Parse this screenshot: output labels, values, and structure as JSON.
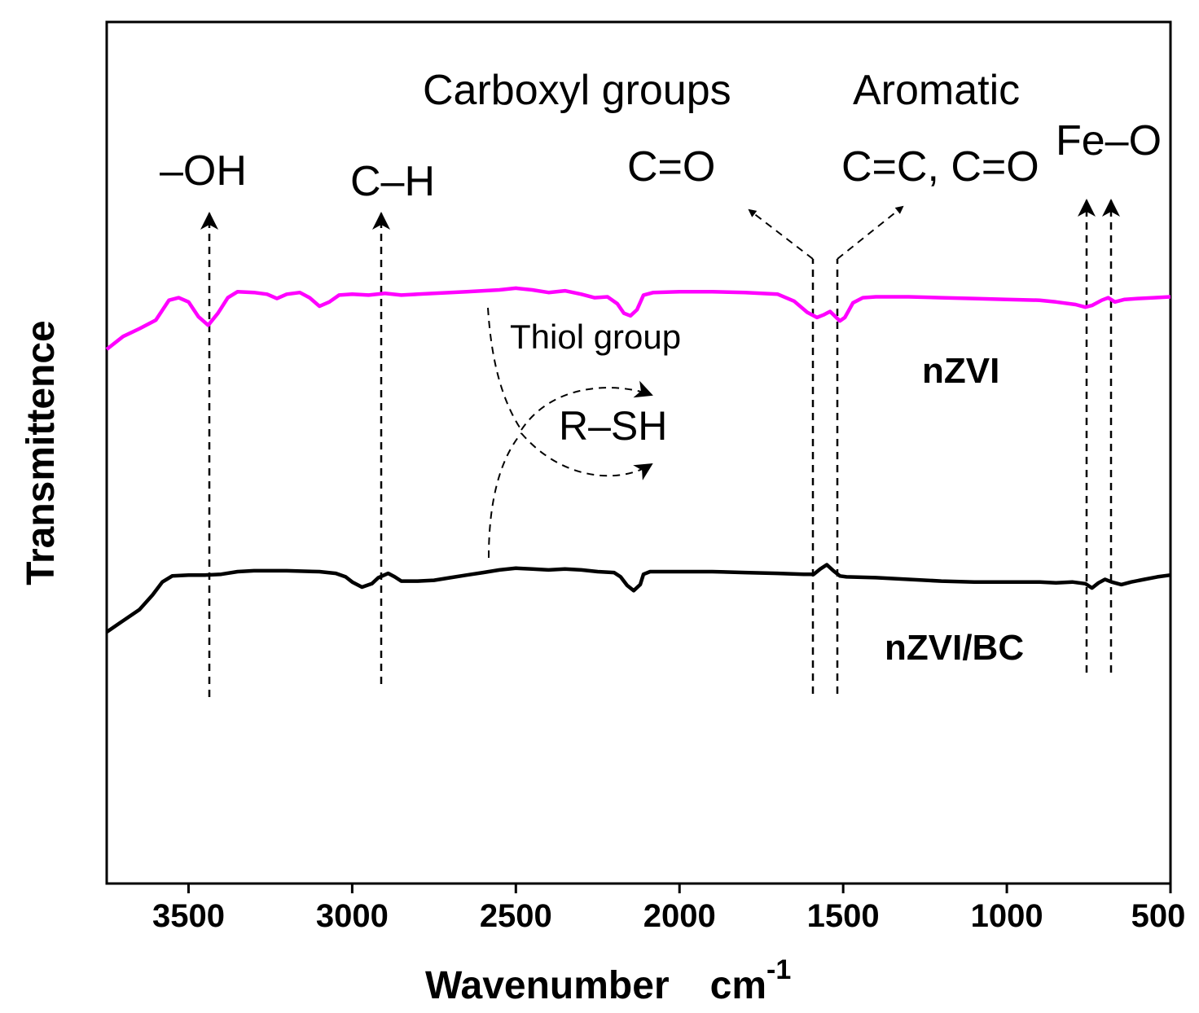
{
  "chart_data": {
    "type": "line",
    "title": "",
    "xlabel": "Wavenumber",
    "xlabel_unit": "cm",
    "xlabel_unit_exponent": "-1",
    "ylabel": "Transmittence",
    "xlim": [
      3750,
      500
    ],
    "x_reversed": true,
    "ylim": [
      0,
      100
    ],
    "y_ticks_shown": false,
    "x_ticks": [
      3500,
      3000,
      2500,
      2000,
      1500,
      1000,
      500
    ],
    "x_tick_labels": [
      "3500",
      "3000",
      "2500",
      "2000",
      "1500",
      "1000",
      "500"
    ],
    "series": [
      {
        "name": "nZVI",
        "color": "#ff00ff",
        "label_position": "right",
        "points": [
          [
            3750,
            62.0
          ],
          [
            3700,
            63.5
          ],
          [
            3650,
            64.4
          ],
          [
            3600,
            65.4
          ],
          [
            3560,
            67.7
          ],
          [
            3530,
            68.0
          ],
          [
            3500,
            67.5
          ],
          [
            3470,
            65.8
          ],
          [
            3440,
            64.8
          ],
          [
            3410,
            66.2
          ],
          [
            3380,
            68.0
          ],
          [
            3350,
            68.7
          ],
          [
            3300,
            68.6
          ],
          [
            3260,
            68.4
          ],
          [
            3230,
            67.9
          ],
          [
            3200,
            68.4
          ],
          [
            3160,
            68.6
          ],
          [
            3130,
            68.0
          ],
          [
            3100,
            67.0
          ],
          [
            3070,
            67.5
          ],
          [
            3040,
            68.3
          ],
          [
            3000,
            68.4
          ],
          [
            2950,
            68.3
          ],
          [
            2900,
            68.5
          ],
          [
            2850,
            68.3
          ],
          [
            2800,
            68.4
          ],
          [
            2750,
            68.5
          ],
          [
            2700,
            68.6
          ],
          [
            2650,
            68.7
          ],
          [
            2600,
            68.8
          ],
          [
            2550,
            68.9
          ],
          [
            2500,
            69.1
          ],
          [
            2450,
            68.9
          ],
          [
            2400,
            68.6
          ],
          [
            2350,
            68.8
          ],
          [
            2300,
            68.4
          ],
          [
            2260,
            68.0
          ],
          [
            2220,
            68.1
          ],
          [
            2190,
            67.3
          ],
          [
            2170,
            66.2
          ],
          [
            2150,
            65.9
          ],
          [
            2130,
            66.6
          ],
          [
            2110,
            68.3
          ],
          [
            2080,
            68.6
          ],
          [
            2000,
            68.7
          ],
          [
            1900,
            68.7
          ],
          [
            1800,
            68.6
          ],
          [
            1700,
            68.4
          ],
          [
            1650,
            67.6
          ],
          [
            1610,
            66.3
          ],
          [
            1580,
            65.7
          ],
          [
            1560,
            66.0
          ],
          [
            1540,
            66.4
          ],
          [
            1510,
            65.3
          ],
          [
            1495,
            65.7
          ],
          [
            1470,
            67.4
          ],
          [
            1440,
            68.0
          ],
          [
            1400,
            68.1
          ],
          [
            1300,
            68.1
          ],
          [
            1200,
            68.0
          ],
          [
            1100,
            67.9
          ],
          [
            1000,
            67.8
          ],
          [
            900,
            67.7
          ],
          [
            850,
            67.5
          ],
          [
            790,
            67.2
          ],
          [
            760,
            66.9
          ],
          [
            740,
            67.1
          ],
          [
            710,
            67.7
          ],
          [
            690,
            68.0
          ],
          [
            670,
            67.5
          ],
          [
            640,
            67.8
          ],
          [
            600,
            67.9
          ],
          [
            550,
            68.0
          ],
          [
            500,
            68.1
          ]
        ]
      },
      {
        "name": "nZVI/BC",
        "color": "#000000",
        "label_position": "right",
        "points": [
          [
            3750,
            29.2
          ],
          [
            3700,
            30.5
          ],
          [
            3650,
            31.8
          ],
          [
            3610,
            33.5
          ],
          [
            3580,
            35.0
          ],
          [
            3550,
            35.7
          ],
          [
            3500,
            35.8
          ],
          [
            3450,
            35.8
          ],
          [
            3400,
            35.9
          ],
          [
            3350,
            36.2
          ],
          [
            3300,
            36.3
          ],
          [
            3200,
            36.3
          ],
          [
            3100,
            36.2
          ],
          [
            3050,
            36.0
          ],
          [
            3020,
            35.6
          ],
          [
            3000,
            35.0
          ],
          [
            2970,
            34.4
          ],
          [
            2940,
            34.8
          ],
          [
            2920,
            35.5
          ],
          [
            2890,
            36.0
          ],
          [
            2870,
            35.6
          ],
          [
            2850,
            35.1
          ],
          [
            2800,
            35.1
          ],
          [
            2750,
            35.2
          ],
          [
            2700,
            35.5
          ],
          [
            2650,
            35.8
          ],
          [
            2600,
            36.1
          ],
          [
            2550,
            36.4
          ],
          [
            2500,
            36.6
          ],
          [
            2450,
            36.5
          ],
          [
            2400,
            36.4
          ],
          [
            2350,
            36.5
          ],
          [
            2300,
            36.4
          ],
          [
            2250,
            36.2
          ],
          [
            2200,
            36.1
          ],
          [
            2180,
            35.6
          ],
          [
            2160,
            34.6
          ],
          [
            2140,
            34.0
          ],
          [
            2120,
            34.7
          ],
          [
            2110,
            35.9
          ],
          [
            2090,
            36.2
          ],
          [
            2000,
            36.2
          ],
          [
            1900,
            36.2
          ],
          [
            1800,
            36.1
          ],
          [
            1700,
            36.0
          ],
          [
            1620,
            35.9
          ],
          [
            1590,
            35.9
          ],
          [
            1570,
            36.5
          ],
          [
            1550,
            37.0
          ],
          [
            1530,
            36.3
          ],
          [
            1510,
            35.7
          ],
          [
            1490,
            35.6
          ],
          [
            1400,
            35.5
          ],
          [
            1300,
            35.3
          ],
          [
            1200,
            35.1
          ],
          [
            1100,
            35.0
          ],
          [
            1000,
            35.0
          ],
          [
            900,
            35.0
          ],
          [
            850,
            34.9
          ],
          [
            800,
            35.0
          ],
          [
            760,
            34.8
          ],
          [
            740,
            34.3
          ],
          [
            720,
            34.9
          ],
          [
            700,
            35.3
          ],
          [
            680,
            35.0
          ],
          [
            650,
            34.7
          ],
          [
            620,
            35.0
          ],
          [
            580,
            35.3
          ],
          [
            540,
            35.6
          ],
          [
            500,
            35.8
          ]
        ]
      }
    ],
    "annotations": {
      "oh": "–OH",
      "ch": "C–H",
      "carboxyl_title": "Carboxyl groups",
      "co": "C=O",
      "aromatic_title": "Aromatic",
      "cc_co": "C=C, C=O",
      "feo": "Fe–O",
      "thiol": "Thiol group",
      "rsh": "R–SH"
    }
  }
}
